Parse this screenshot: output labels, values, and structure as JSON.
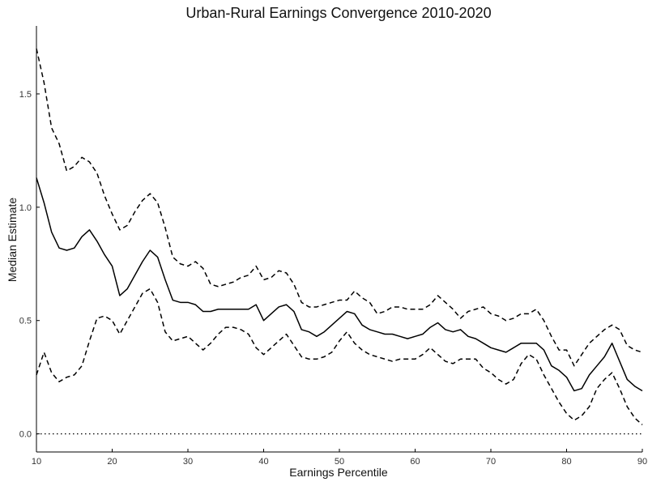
{
  "chart_data": {
    "type": "line",
    "title": "Urban-Rural Earnings Convergence 2010-2020",
    "xlabel": "Earnings Percentile",
    "ylabel": "Median Estimate",
    "xlim": [
      10,
      90
    ],
    "ylim": [
      -0.08,
      1.8
    ],
    "x_ticks": [
      10,
      20,
      30,
      40,
      50,
      60,
      70,
      80,
      90
    ],
    "x_tick_labels": [
      "10",
      "20",
      "30",
      "40",
      "50",
      "60",
      "70",
      "80",
      "90"
    ],
    "y_ticks": [
      0.0,
      0.5,
      1.0,
      1.5
    ],
    "y_tick_labels": [
      "0.0",
      "0.5",
      "1.0",
      "1.5"
    ],
    "grid": false,
    "reference_line": {
      "y": 0.0,
      "style": "dotted"
    },
    "x": [
      10,
      11,
      12,
      13,
      14,
      15,
      16,
      17,
      18,
      19,
      20,
      21,
      22,
      23,
      24,
      25,
      26,
      27,
      28,
      29,
      30,
      31,
      32,
      33,
      34,
      35,
      36,
      37,
      38,
      39,
      40,
      41,
      42,
      43,
      44,
      45,
      46,
      47,
      48,
      49,
      50,
      51,
      52,
      53,
      54,
      55,
      56,
      57,
      58,
      59,
      60,
      61,
      62,
      63,
      64,
      65,
      66,
      67,
      68,
      69,
      70,
      71,
      72,
      73,
      74,
      75,
      76,
      77,
      78,
      79,
      80,
      81,
      82,
      83,
      84,
      85,
      86,
      87,
      88,
      89,
      90
    ],
    "series": [
      {
        "style": "solid",
        "values": [
          1.13,
          1.02,
          0.89,
          0.82,
          0.81,
          0.82,
          0.87,
          0.9,
          0.85,
          0.79,
          0.74,
          0.61,
          0.64,
          0.7,
          0.76,
          0.81,
          0.78,
          0.68,
          0.59,
          0.58,
          0.58,
          0.57,
          0.54,
          0.54,
          0.55,
          0.55,
          0.55,
          0.55,
          0.55,
          0.57,
          0.5,
          0.53,
          0.56,
          0.57,
          0.54,
          0.46,
          0.45,
          0.43,
          0.45,
          0.48,
          0.51,
          0.54,
          0.53,
          0.48,
          0.46,
          0.45,
          0.44,
          0.44,
          0.43,
          0.42,
          0.43,
          0.44,
          0.47,
          0.49,
          0.46,
          0.45,
          0.46,
          0.43,
          0.42,
          0.4,
          0.38,
          0.37,
          0.36,
          0.38,
          0.4,
          0.4,
          0.4,
          0.37,
          0.3,
          0.28,
          0.25,
          0.19,
          0.2,
          0.26,
          0.3,
          0.34,
          0.4,
          0.32,
          0.24,
          0.21,
          0.19
        ]
      },
      {
        "style": "dashed",
        "values": [
          1.7,
          1.55,
          1.35,
          1.28,
          1.16,
          1.18,
          1.22,
          1.2,
          1.15,
          1.05,
          0.97,
          0.9,
          0.92,
          0.98,
          1.03,
          1.06,
          1.02,
          0.91,
          0.78,
          0.75,
          0.74,
          0.76,
          0.73,
          0.66,
          0.65,
          0.66,
          0.67,
          0.69,
          0.7,
          0.74,
          0.68,
          0.69,
          0.72,
          0.71,
          0.66,
          0.58,
          0.56,
          0.56,
          0.57,
          0.58,
          0.59,
          0.59,
          0.63,
          0.6,
          0.58,
          0.53,
          0.54,
          0.56,
          0.56,
          0.55,
          0.55,
          0.55,
          0.57,
          0.61,
          0.58,
          0.55,
          0.51,
          0.54,
          0.55,
          0.56,
          0.53,
          0.52,
          0.5,
          0.51,
          0.53,
          0.53,
          0.55,
          0.5,
          0.43,
          0.37,
          0.37,
          0.3,
          0.35,
          0.4,
          0.43,
          0.46,
          0.48,
          0.46,
          0.39,
          0.37,
          0.36
        ]
      },
      {
        "style": "dashed",
        "values": [
          0.26,
          0.36,
          0.27,
          0.23,
          0.25,
          0.26,
          0.3,
          0.41,
          0.51,
          0.52,
          0.5,
          0.44,
          0.5,
          0.56,
          0.62,
          0.64,
          0.58,
          0.45,
          0.41,
          0.42,
          0.43,
          0.4,
          0.37,
          0.4,
          0.44,
          0.47,
          0.47,
          0.46,
          0.44,
          0.38,
          0.35,
          0.38,
          0.41,
          0.44,
          0.39,
          0.34,
          0.33,
          0.33,
          0.34,
          0.36,
          0.41,
          0.45,
          0.4,
          0.37,
          0.35,
          0.34,
          0.33,
          0.32,
          0.33,
          0.33,
          0.33,
          0.35,
          0.38,
          0.35,
          0.32,
          0.31,
          0.33,
          0.33,
          0.33,
          0.29,
          0.27,
          0.24,
          0.22,
          0.24,
          0.31,
          0.35,
          0.33,
          0.26,
          0.2,
          0.14,
          0.09,
          0.06,
          0.08,
          0.12,
          0.2,
          0.24,
          0.27,
          0.2,
          0.12,
          0.07,
          0.04
        ]
      }
    ]
  }
}
